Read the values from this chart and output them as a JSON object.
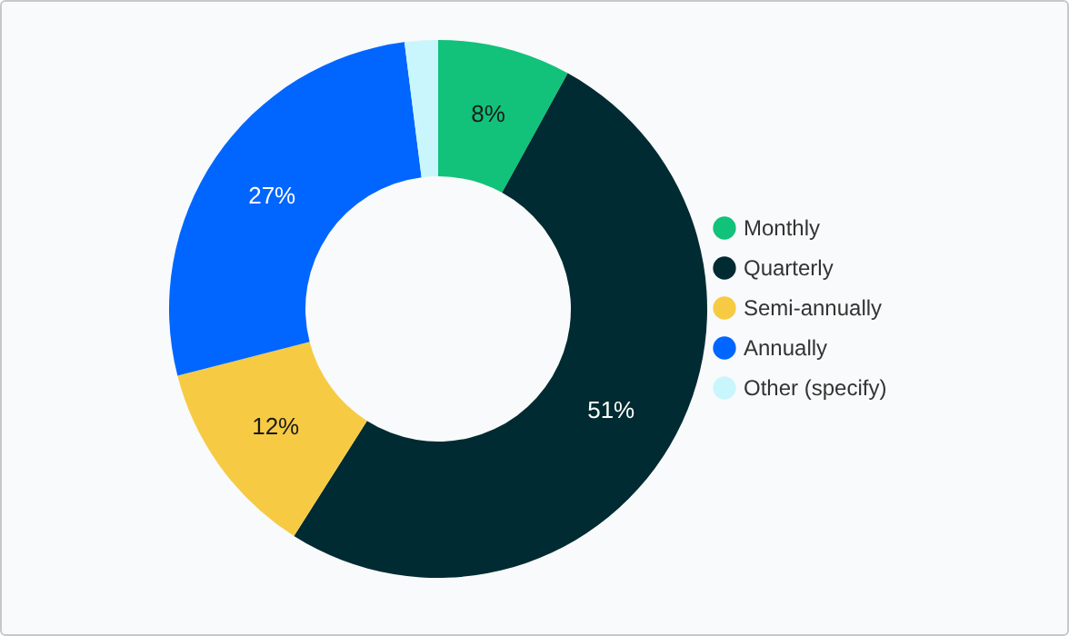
{
  "chart_data": {
    "type": "donut",
    "categories": [
      "Monthly",
      "Quarterly",
      "Semi-annually",
      "Annually",
      "Other (specify)"
    ],
    "values": [
      8,
      51,
      12,
      27,
      2
    ],
    "colors": [
      "#12c27a",
      "#002b32",
      "#f6cb43",
      "#0066ff",
      "#c9f6fc"
    ],
    "value_labels": [
      "8%",
      "51%",
      "12%",
      "27%",
      null
    ],
    "legend": "right"
  }
}
